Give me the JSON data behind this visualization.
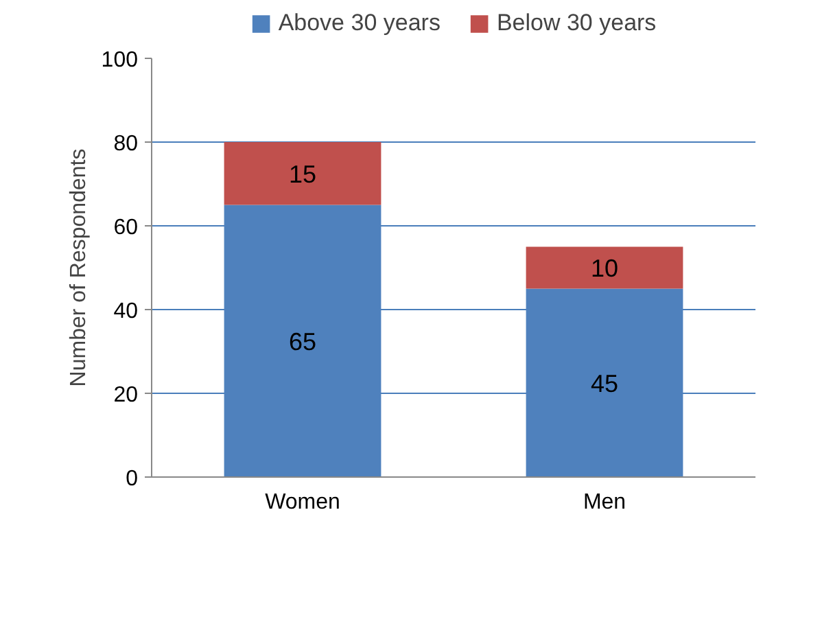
{
  "chart_data": {
    "type": "bar",
    "stacked": true,
    "ylabel": "Number of Respondents",
    "categories": [
      "Women",
      "Men"
    ],
    "series": [
      {
        "name": "Above 30 years",
        "color": "#4f81bd",
        "values": [
          65,
          45
        ]
      },
      {
        "name": "Below 30 years",
        "color": "#c0504d",
        "values": [
          15,
          10
        ]
      }
    ],
    "ylim": [
      0,
      100
    ],
    "yticks": [
      0,
      20,
      40,
      60,
      80,
      100
    ],
    "grid": "y",
    "legend": "top",
    "data_labels": true
  }
}
